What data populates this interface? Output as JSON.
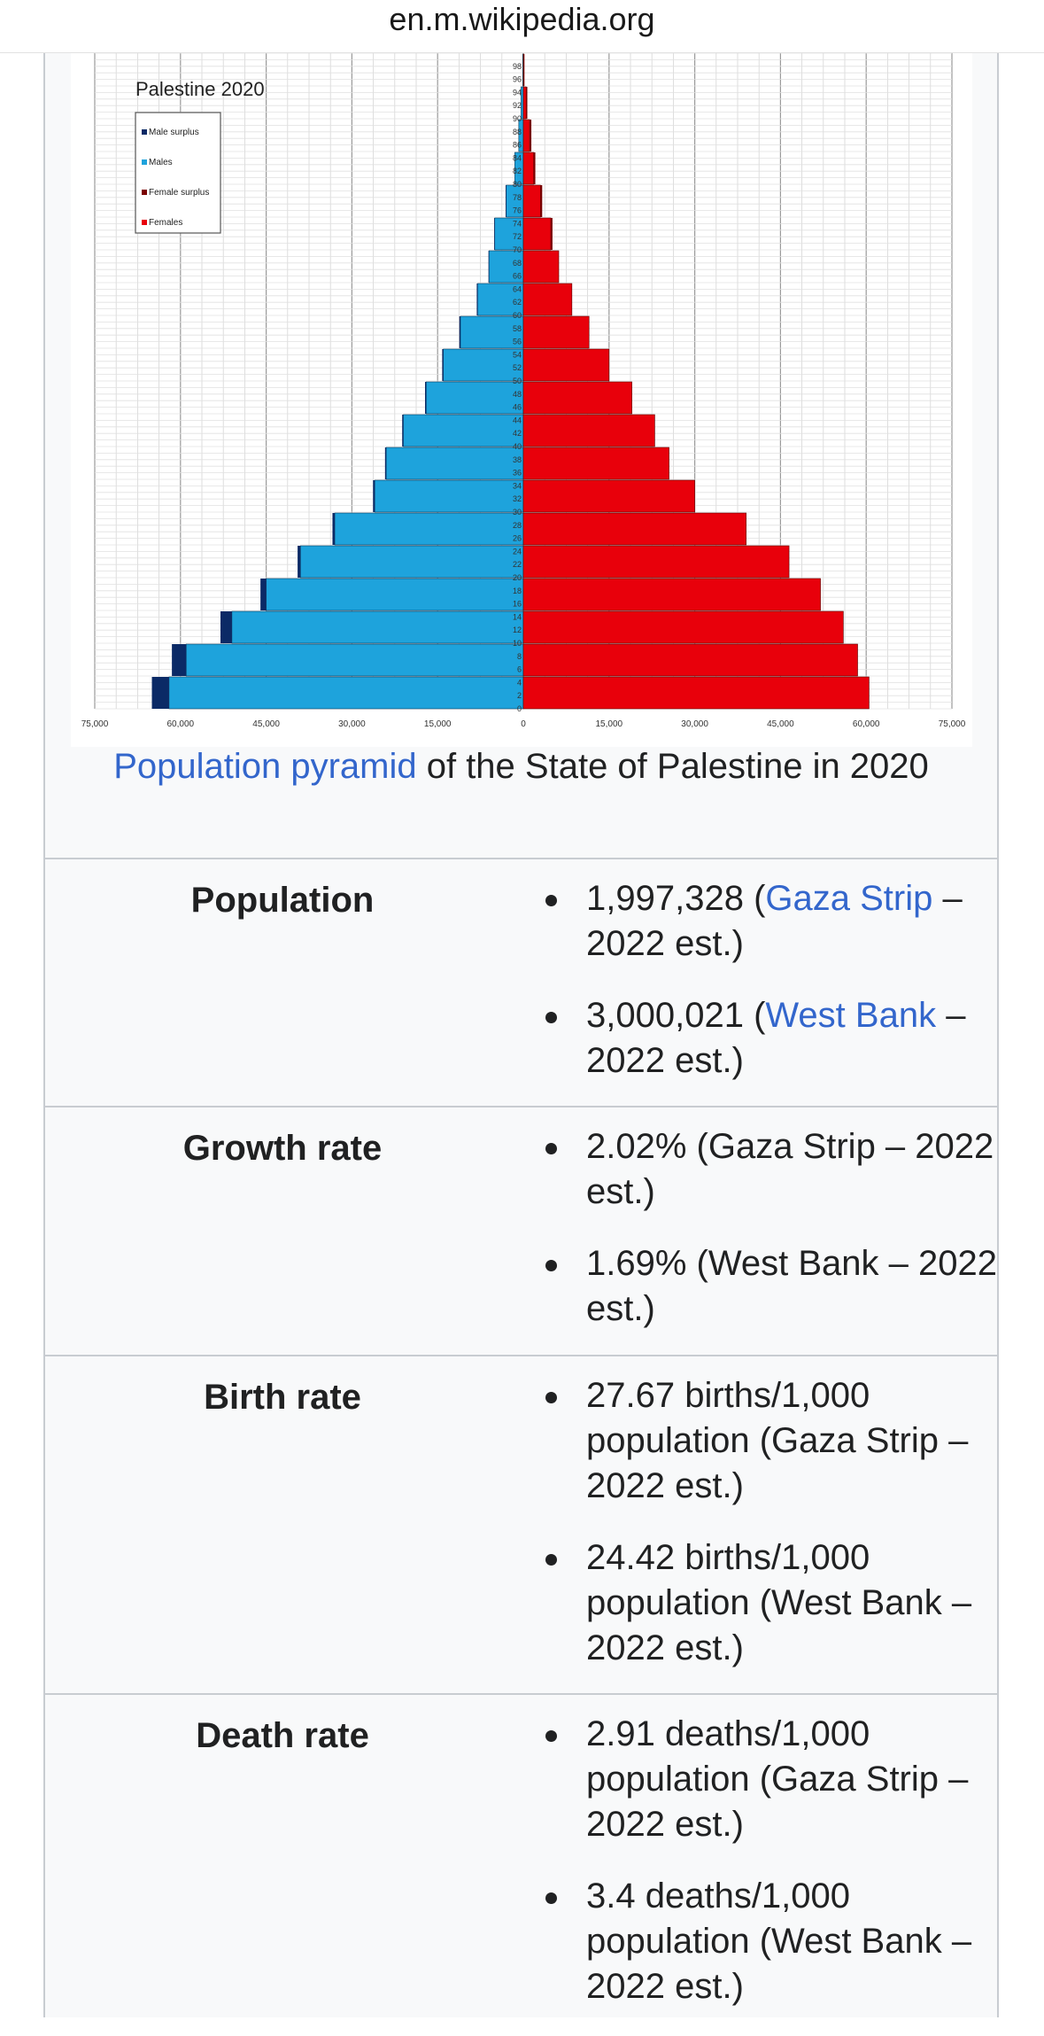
{
  "browser": {
    "url": "en.m.wikipedia.org"
  },
  "caption": {
    "link": "Population pyramid",
    "text": " of the State of Palestine in 2020"
  },
  "chart_data": {
    "type": "bar",
    "title": "Palestine 2020",
    "legend": [
      "Male surplus",
      "Males",
      "Female surplus",
      "Females"
    ],
    "legend_position": "top-left",
    "colors": {
      "male_surplus": "#0b2a66",
      "males": "#1ea3dc",
      "female_surplus": "#7a0000",
      "females": "#e8000b"
    },
    "age_ticks": [
      "0",
      "2",
      "4",
      "6",
      "8",
      "10",
      "12",
      "14",
      "16",
      "18",
      "20",
      "22",
      "24",
      "26",
      "28",
      "30",
      "32",
      "34",
      "36",
      "38",
      "40",
      "42",
      "44",
      "46",
      "48",
      "50",
      "52",
      "54",
      "56",
      "58",
      "60",
      "62",
      "64",
      "66",
      "68",
      "70",
      "72",
      "74",
      "76",
      "78",
      "80",
      "82",
      "84",
      "86",
      "88",
      "90",
      "92",
      "94",
      "96",
      "98"
    ],
    "x_ticks": [
      "75,000",
      "60,000",
      "45,000",
      "30,000",
      "15,000",
      "0",
      "15,000",
      "30,000",
      "45,000",
      "60,000",
      "75,000"
    ],
    "xlim": [
      -75000,
      75000
    ],
    "grid": true,
    "age_groups": [
      0,
      5,
      10,
      15,
      20,
      25,
      30,
      35,
      40,
      45,
      50,
      55,
      60,
      65,
      70,
      75,
      80,
      85,
      90,
      95
    ],
    "males": [
      62000,
      59000,
      51000,
      45000,
      39000,
      33000,
      26000,
      24000,
      21000,
      17000,
      14000,
      11000,
      8000,
      6000,
      5000,
      3000,
      1500,
      800,
      400,
      100
    ],
    "females": [
      60500,
      58500,
      56000,
      52000,
      46500,
      39000,
      30000,
      25500,
      23000,
      19000,
      15000,
      11500,
      8500,
      6200,
      4800,
      3000,
      1800,
      1100,
      500,
      100
    ],
    "male_surplus": [
      3000,
      2500,
      2000,
      1000,
      500,
      400,
      300,
      200,
      200,
      200,
      200,
      200,
      150,
      100,
      100,
      100,
      0,
      0,
      0,
      0
    ],
    "female_surplus": [
      0,
      0,
      0,
      0,
      0,
      0,
      0,
      0,
      0,
      0,
      0,
      0,
      0,
      0,
      300,
      300,
      300,
      300,
      200,
      100
    ]
  },
  "rows": [
    {
      "label": "Population",
      "items": [
        {
          "pre": "1,997,328 (",
          "link": "Gaza Strip",
          "post": " – 2022 est.)"
        },
        {
          "pre": "3,000,021 (",
          "link": "West Bank",
          "post": " – 2022 est.)"
        }
      ]
    },
    {
      "label": "Growth rate",
      "items": [
        {
          "pre": "2.02% (Gaza Strip – 2022 est.)"
        },
        {
          "pre": "1.69% (West Bank – 2022 est.)"
        }
      ]
    },
    {
      "label": "Birth rate",
      "items": [
        {
          "pre": "27.67 births/1,000 population (Gaza Strip – 2022 est.)"
        },
        {
          "pre": "24.42 births/1,000 population (West Bank – 2022 est.)"
        }
      ]
    },
    {
      "label": "Death rate",
      "items": [
        {
          "pre": "2.91 deaths/1,000 population (Gaza Strip – 2022 est.)"
        },
        {
          "pre": "3.4 deaths/1,000 population (West Bank – 2022 est.)"
        }
      ]
    }
  ]
}
